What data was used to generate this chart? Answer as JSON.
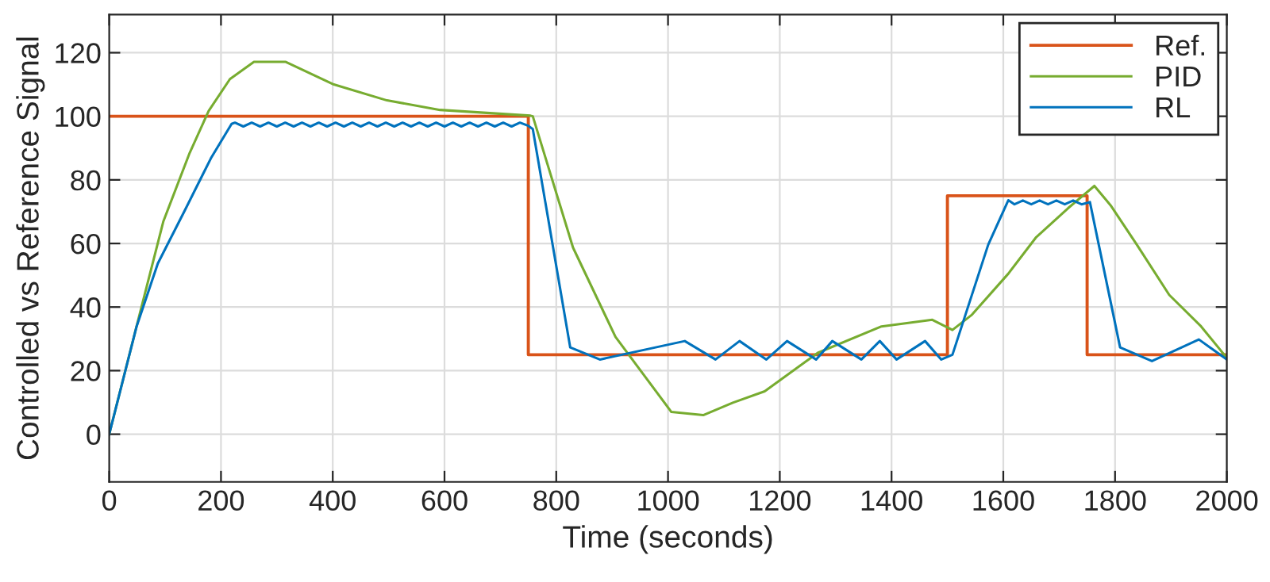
{
  "chart_data": {
    "type": "line",
    "xlabel": "Time (seconds)",
    "ylabel": "Controlled vs Reference Signal",
    "xlim": [
      0,
      2000
    ],
    "xticks": [
      0,
      200,
      400,
      600,
      800,
      1000,
      1200,
      1400,
      1600,
      1800,
      2000
    ],
    "ylim": [
      -15,
      132
    ],
    "yticks": [
      0,
      20,
      40,
      60,
      80,
      100,
      120
    ],
    "grid": true,
    "legend": "top right",
    "series": [
      {
        "name": "Ref.",
        "type": "step",
        "color": "#d95319",
        "x": [
          0,
          750,
          1500,
          1750,
          2000
        ],
        "values": [
          100,
          25,
          75,
          25,
          25
        ]
      },
      {
        "name": "PID",
        "color": "#77ac30",
        "x": [
          0,
          49,
          97,
          144,
          178,
          216,
          259,
          316,
          402,
          497,
          592,
          754,
          758,
          830,
          906,
          1006,
          1063,
          1116,
          1173,
          1268,
          1382,
          1473,
          1509,
          1544,
          1609,
          1659,
          1716,
          1763,
          1792,
          1839,
          1897,
          1954,
          2000
        ],
        "values": [
          0,
          34,
          67,
          88.5,
          101.7,
          111.7,
          117.1,
          117.1,
          110,
          105,
          102,
          100.2,
          100,
          58.7,
          30.6,
          7,
          6,
          9.9,
          13.5,
          25.6,
          33.9,
          36,
          32.8,
          37.6,
          50.5,
          62,
          71.1,
          78.1,
          72,
          59.6,
          43.8,
          33.9,
          24
        ]
      },
      {
        "name": "RL",
        "color": "#0072bd",
        "x": [
          0,
          49,
          87,
          135,
          182,
          219,
          225,
          240,
          255,
          270,
          285,
          300,
          315,
          330,
          345,
          360,
          375,
          390,
          405,
          420,
          435,
          450,
          465,
          480,
          495,
          510,
          525,
          540,
          555,
          570,
          585,
          600,
          615,
          630,
          645,
          660,
          675,
          690,
          705,
          720,
          735,
          750,
          758,
          825,
          878,
          1030,
          1085,
          1128,
          1176,
          1213,
          1265,
          1294,
          1346,
          1379,
          1409,
          1460,
          1489,
          1509,
          1573,
          1609,
          1620,
          1635,
          1650,
          1665,
          1680,
          1695,
          1710,
          1725,
          1740,
          1755,
          1809,
          1866,
          1950,
          2000
        ],
        "values": [
          0,
          33.9,
          53.7,
          70.3,
          86.8,
          97.6,
          98,
          96.8,
          98,
          96.8,
          98,
          96.8,
          98,
          96.8,
          98,
          96.8,
          98,
          96.8,
          98,
          96.8,
          98,
          96.8,
          98,
          96.8,
          98,
          96.8,
          98,
          96.8,
          98,
          96.8,
          98,
          96.8,
          98,
          96.8,
          98,
          96.8,
          98,
          96.8,
          98,
          96.8,
          98,
          97,
          96,
          27.3,
          23.5,
          29.3,
          23.5,
          29.3,
          23.5,
          29.3,
          23.5,
          29.3,
          23.5,
          29.3,
          23.5,
          29.3,
          23.5,
          25,
          59.6,
          73.6,
          72.3,
          73.5,
          72.3,
          73.5,
          72.3,
          73.5,
          72.3,
          73.5,
          72.3,
          73,
          27.3,
          23,
          29.8,
          23.5
        ]
      }
    ]
  }
}
